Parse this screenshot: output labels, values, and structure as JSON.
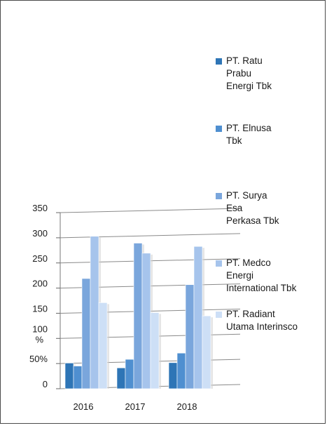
{
  "chart_data": {
    "type": "bar",
    "categories": [
      "2016",
      "2017",
      "2018"
    ],
    "ylim": [
      0,
      350
    ],
    "y_ticks": [
      {
        "value": 0,
        "label": "0"
      },
      {
        "value": 50,
        "label": "50%"
      },
      {
        "value": 100,
        "label": "100\n%"
      },
      {
        "value": 150,
        "label": "150"
      },
      {
        "value": 200,
        "label": "200"
      },
      {
        "value": 250,
        "label": "250"
      },
      {
        "value": 300,
        "label": "300"
      },
      {
        "value": 350,
        "label": "350"
      }
    ],
    "grid": true,
    "perspective": "3d",
    "legend_position": "right",
    "series": [
      {
        "name": "PT. Ratu Prabu Energi Tbk",
        "legend_lines": [
          "PT. Ratu",
          "Prabu",
          "Energi Tbk"
        ],
        "color": "#2e75b6",
        "values": [
          51,
          40,
          49
        ]
      },
      {
        "name": "PT. Elnusa Tbk",
        "legend_lines": [
          "PT. Elnusa",
          "Tbk"
        ],
        "color": "#4f8fd0",
        "values": [
          45,
          57,
          68
        ]
      },
      {
        "name": "PT. Surya Esa Perkasa Tbk",
        "legend_lines": [
          "PT. Surya",
          "Esa",
          "Perkasa Tbk"
        ],
        "color": "#7aa6dc",
        "values": [
          219,
          288,
          204
        ]
      },
      {
        "name": "PT. Medco Energi International Tbk",
        "legend_lines": [
          "PT. Medco",
          "Energi",
          "International Tbk"
        ],
        "color": "#a6c4ec",
        "values": [
          303,
          268,
          280
        ]
      },
      {
        "name": "PT. Radiant Utama Interinsco",
        "legend_lines": [
          "PT. Radiant",
          "Utama Interinsco"
        ],
        "color": "#cddff6",
        "values": [
          171,
          150,
          142
        ]
      }
    ]
  }
}
